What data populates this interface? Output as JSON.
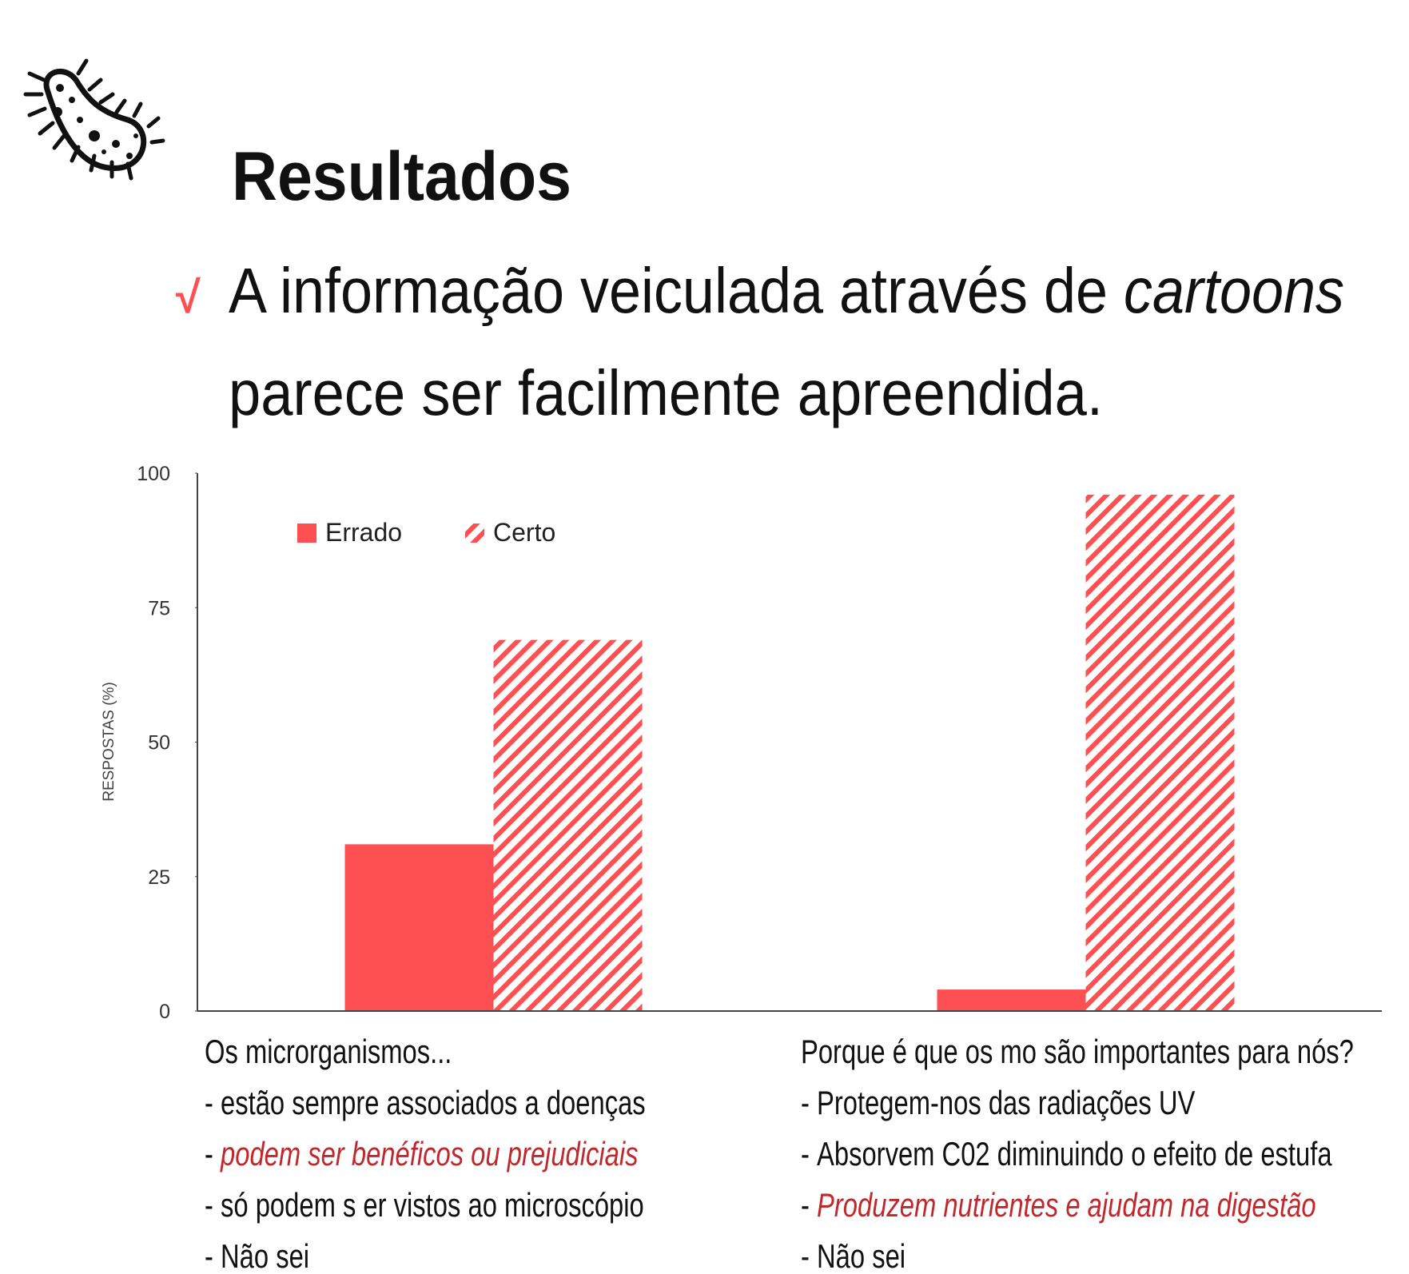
{
  "header": {
    "icon_alt": null,
    "title": "Resultados",
    "check": "√",
    "bullet_line_1": [
      "A informação veiculada através de",
      "cartoons"
    ],
    "bullet_line_2": "parece ser facilmente apreendida."
  },
  "chart_data": {
    "type": "bar",
    "y_label": "RESPOSTAS (%)",
    "categories": [
      "Os microrganismos...",
      "Porque é que os mo são importantes para nós?"
    ],
    "series": [
      {
        "name": "Errado",
        "color": "#fe5052",
        "pattern": "solid",
        "values": [
          31,
          4
        ]
      },
      {
        "name": "Certo",
        "color": "#fe5052",
        "pattern": "hatch",
        "values": [
          69,
          96
        ]
      }
    ],
    "ylim": [
      0,
      100
    ],
    "yticks": [
      0,
      25,
      50,
      75,
      100
    ],
    "grid": false,
    "legend": "upper left",
    "answer_marker": "-",
    "answer_highlight_color": "#c0282d",
    "answers": [
      [
        {
          "text": "estão sempre associados a doenças",
          "correct": false
        },
        {
          "text": "podem ser benéficos ou prejudiciais",
          "correct": true
        },
        {
          "text": "só podem s er vistos ao microscópio",
          "correct": false
        },
        {
          "text": "Não sei",
          "correct": false
        }
      ],
      [
        {
          "text": "Protegem-nos das radiações UV",
          "correct": false
        },
        {
          "text": "Absorvem C02 diminuindo o efeito de estufa",
          "correct": false
        },
        {
          "text": "Produzem nutrientes e ajudam na digestão",
          "correct": true
        },
        {
          "text": "Não sei",
          "correct": false
        }
      ]
    ]
  }
}
